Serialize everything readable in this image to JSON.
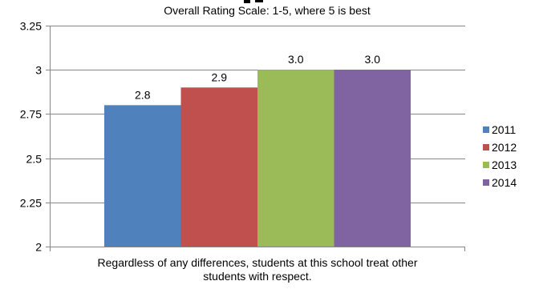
{
  "chart_data": {
    "type": "bar",
    "title": "",
    "subtitle": "Overall Rating Scale: 1-5, where 5 is best",
    "categories": [
      "Regardless of any differences, students at this school treat other students with respect."
    ],
    "category_label_lines": [
      "Regardless of any differences, students at this school treat other",
      "students with respect."
    ],
    "series": [
      {
        "name": "2011",
        "values": [
          2.8
        ],
        "label": "2.8",
        "color": "#4f81bd"
      },
      {
        "name": "2012",
        "values": [
          2.9
        ],
        "label": "2.9",
        "color": "#c0504d"
      },
      {
        "name": "2013",
        "values": [
          3.0
        ],
        "label": "3.0",
        "color": "#9bbb59"
      },
      {
        "name": "2014",
        "values": [
          3.0
        ],
        "label": "3.0",
        "color": "#8064a2"
      }
    ],
    "ylim": [
      2,
      3.25
    ],
    "yticks": [
      "2",
      "2.25",
      "2.5",
      "2.75",
      "3",
      "3.25"
    ],
    "ytick_values": [
      2,
      2.25,
      2.5,
      2.75,
      3,
      3.25
    ],
    "grid": true,
    "legend_position": "right",
    "xlabel": "",
    "ylabel": ""
  }
}
